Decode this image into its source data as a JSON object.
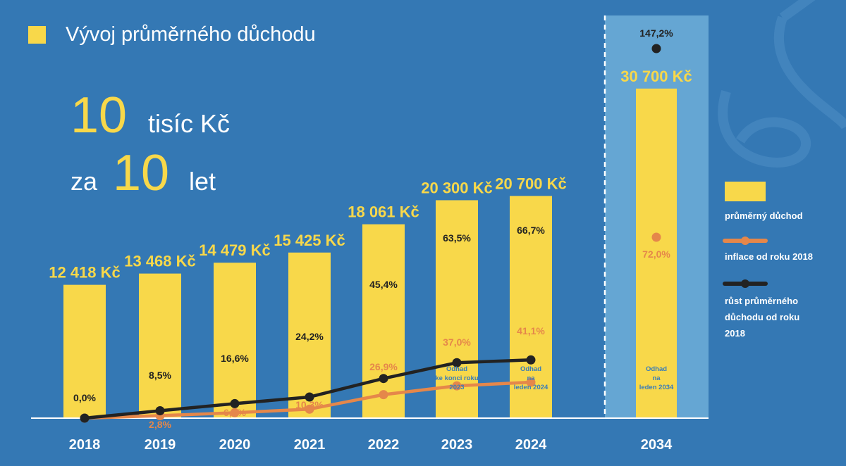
{
  "header": {
    "title": "Vývoj průměrného důchodu",
    "headline": {
      "num1": "10",
      "text1": "tisíc Kč",
      "prefix2": "za",
      "num2": "10",
      "text2": "let"
    }
  },
  "legend": {
    "pension": "průměrný důchod",
    "inflation": "inflace od roku 2018",
    "growth_lines": [
      "růst průměrného",
      "důchodu od roku",
      "2018"
    ]
  },
  "colors": {
    "background": "#3478b4",
    "highlight_panel": "#65a6d3",
    "bar": "#f8d84a",
    "inflation": "#e5874a",
    "growth": "#222222",
    "axis": "#ffffff",
    "note": "#3a7db8"
  },
  "chart_data": {
    "type": "bar",
    "categories": [
      "2018",
      "2019",
      "2020",
      "2021",
      "2022",
      "2023",
      "2024",
      "2034"
    ],
    "bar_values": [
      12418,
      13468,
      14479,
      15425,
      18061,
      20300,
      20700,
      30700
    ],
    "bar_labels": [
      "12 418 Kč",
      "13 468 Kč",
      "14 479 Kč",
      "15 425 Kč",
      "18 061 Kč",
      "20 300 Kč",
      "20 700 Kč",
      "30 700 Kč"
    ],
    "bar_notes": [
      [],
      [],
      [],
      [],
      [],
      [
        "Odhad",
        "ke konci roku",
        "2023"
      ],
      [
        "Odhad",
        "na",
        "leden 2024"
      ],
      [
        "Odhad",
        "na",
        "leden 2034"
      ]
    ],
    "highlighted_category": "2034",
    "series": [
      {
        "name": "růst průměrného důchodu od roku 2018",
        "type": "line",
        "values": [
          0.0,
          8.5,
          16.6,
          24.2,
          45.4,
          63.5,
          66.7,
          147.2
        ],
        "labels": [
          "0,0%",
          "8,5%",
          "16,6%",
          "24,2%",
          "45,4%",
          "63,5%",
          "66,7%",
          "147,2%"
        ]
      },
      {
        "name": "inflace od roku 2018",
        "type": "line",
        "values": [
          0.0,
          2.8,
          6.2,
          10.3,
          26.9,
          37.0,
          41.1,
          72.0
        ],
        "labels": [
          "",
          "2,8%",
          "6,2%",
          "10,3%",
          "26,9%",
          "37,0%",
          "41,1%",
          "72,0%"
        ]
      }
    ],
    "legend_position": "right",
    "grid": false
  }
}
